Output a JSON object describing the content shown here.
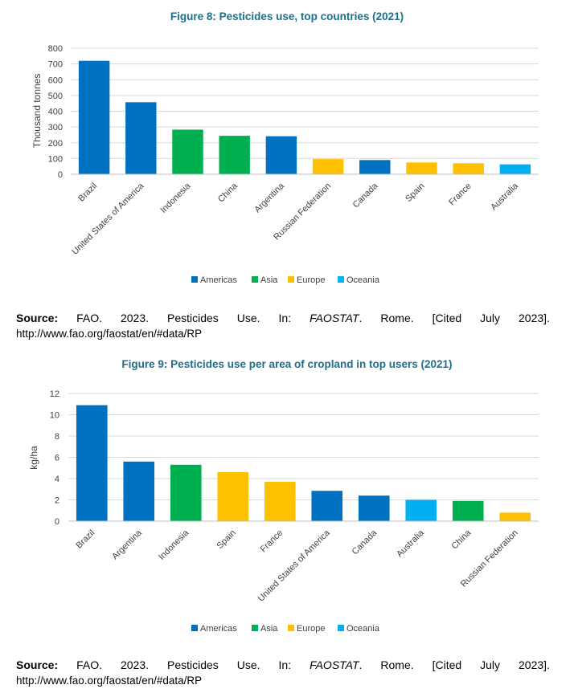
{
  "figure8": {
    "title": "Figure 8: Pesticides use, top countries (2021)",
    "source": {
      "label": "Source:",
      "words": [
        "FAO.",
        "2023.",
        "Pesticides",
        "Use.",
        "In:"
      ],
      "italic": "FAOSTAT",
      "after_italic": ".",
      "tail": [
        "Rome.",
        "[Cited",
        "July",
        "2023]."
      ],
      "url": "http://www.fao.org/faostat/en/#data/RP"
    }
  },
  "figure9": {
    "title": "Figure 9: Pesticides use per area of cropland in top users (2021)",
    "source": {
      "label": "Source:",
      "words": [
        "FAO.",
        "2023.",
        "Pesticides",
        "Use.",
        "In:"
      ],
      "italic": "FAOSTAT",
      "after_italic": ".",
      "tail": [
        "Rome.",
        "[Cited",
        "July",
        "2023]."
      ],
      "url": "http://www.fao.org/faostat/en/#data/RP"
    }
  },
  "region_colors": {
    "Americas": "#0070c0",
    "Asia": "#00b050",
    "Europe": "#ffc000",
    "Oceania": "#00b0f0"
  },
  "chart_data": [
    {
      "type": "bar",
      "title": "Figure 8: Pesticides use, top countries (2021)",
      "xlabel": "",
      "ylabel": "Thousand tonnes",
      "ylim": [
        0,
        800
      ],
      "yticks": [
        0,
        100,
        200,
        300,
        400,
        500,
        600,
        700,
        800
      ],
      "grid": true,
      "legend_position": "bottom",
      "legend": [
        "Americas",
        "Asia",
        "Europe",
        "Oceania"
      ],
      "categories": [
        "Brazil",
        "United States of America",
        "Indonesia",
        "China",
        "Argentina",
        "Russian Federation",
        "Canada",
        "Spain",
        "France",
        "Australia"
      ],
      "values": [
        720,
        457,
        283,
        244,
        241,
        96,
        90,
        75,
        70,
        63
      ],
      "regions": [
        "Americas",
        "Americas",
        "Asia",
        "Asia",
        "Americas",
        "Europe",
        "Americas",
        "Europe",
        "Europe",
        "Oceania"
      ]
    },
    {
      "type": "bar",
      "title": "Figure 9: Pesticides use per area of cropland in top users (2021)",
      "xlabel": "",
      "ylabel": "kg/ha",
      "ylim": [
        0,
        12
      ],
      "yticks": [
        0,
        2,
        4,
        6,
        8,
        10,
        12
      ],
      "grid": true,
      "legend_position": "bottom",
      "legend": [
        "Americas",
        "Asia",
        "Europe",
        "Oceania"
      ],
      "categories": [
        "Brazil",
        "Argentina",
        "Indonesia",
        "Spain",
        "France",
        "United States of America",
        "Canada",
        "Australia",
        "China",
        "Russian Federation"
      ],
      "values": [
        10.9,
        5.6,
        5.3,
        4.6,
        3.7,
        2.85,
        2.4,
        2.0,
        1.9,
        0.8
      ],
      "regions": [
        "Americas",
        "Americas",
        "Asia",
        "Europe",
        "Europe",
        "Americas",
        "Americas",
        "Oceania",
        "Asia",
        "Europe"
      ]
    }
  ]
}
